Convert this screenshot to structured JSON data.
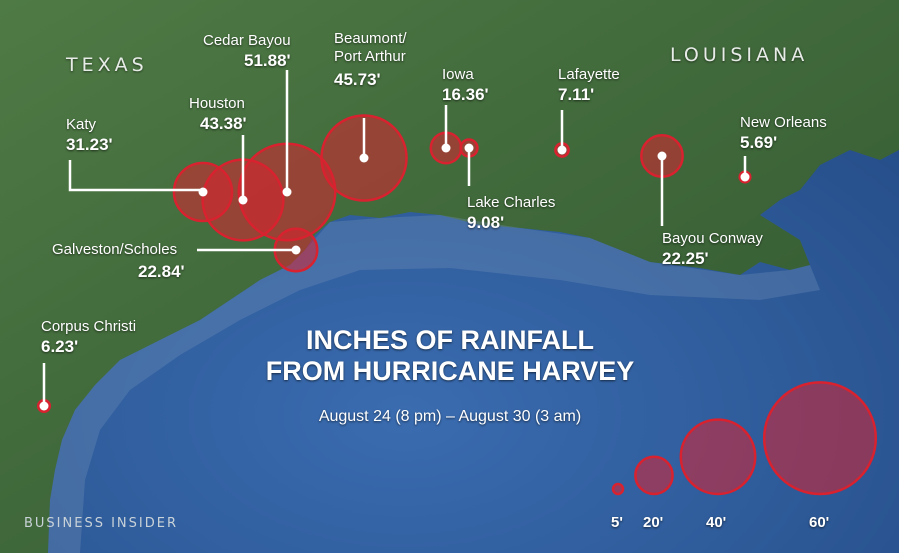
{
  "map": {
    "states": [
      "TEXAS",
      "LOUISIANA"
    ],
    "title_lines": [
      "INCHES OF RAINFALL",
      "FROM HURRICANE HARVEY"
    ],
    "subtitle": "August 24 (8 pm) – August 30 (3 am)",
    "brand": "BUSINESS INSIDER",
    "marker_color": "#d8222f",
    "land_color": "#3f6b3f",
    "water_color": "#2f5b9a"
  },
  "locations": [
    {
      "name": "Katy",
      "value_label": "31.23'",
      "inches": 31.23
    },
    {
      "name": "Houston",
      "value_label": "43.38'",
      "inches": 43.38
    },
    {
      "name": "Cedar Bayou",
      "value_label": "51.88'",
      "inches": 51.88
    },
    {
      "name": "Beaumont/\nPort Arthur",
      "value_label": "45.73'",
      "inches": 45.73
    },
    {
      "name": "Iowa",
      "value_label": "16.36'",
      "inches": 16.36
    },
    {
      "name": "Lake Charles",
      "value_label": "9.08'",
      "inches": 9.08
    },
    {
      "name": "Lafayette",
      "value_label": "7.11'",
      "inches": 7.11
    },
    {
      "name": "Bayou Conway",
      "value_label": "22.25'",
      "inches": 22.25
    },
    {
      "name": "New Orleans",
      "value_label": "5.69'",
      "inches": 5.69
    },
    {
      "name": "Galveston/Scholes",
      "value_label": "22.84'",
      "inches": 22.84
    },
    {
      "name": "Corpus Christi",
      "value_label": "6.23'",
      "inches": 6.23
    }
  ],
  "legend": [
    {
      "label": "5'",
      "inches": 5
    },
    {
      "label": "20'",
      "inches": 20
    },
    {
      "label": "40'",
      "inches": 40
    },
    {
      "label": "60'",
      "inches": 60
    }
  ]
}
